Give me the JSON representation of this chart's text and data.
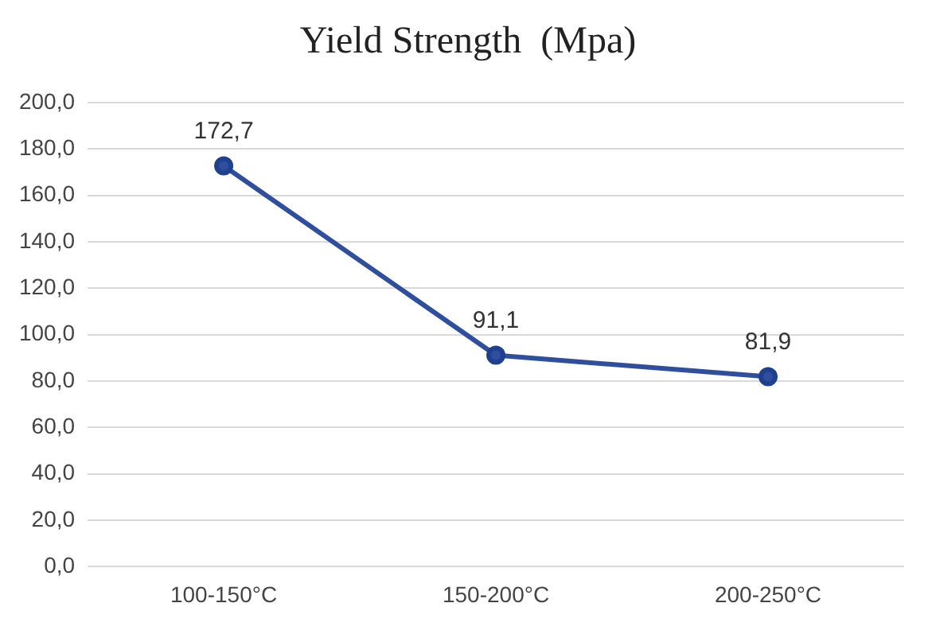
{
  "chart_data": {
    "type": "line",
    "title": "Yield Strength  (Mpa)",
    "categories": [
      "100-150°C",
      "150-200°C",
      "200-250°C"
    ],
    "series": [
      {
        "color": "#2f4f9e",
        "values": [
          172.7,
          91.1,
          81.9
        ],
        "value_labels": [
          "172,7",
          "91,1",
          "81,9"
        ]
      }
    ],
    "ylim": [
      0,
      200
    ],
    "yticks": [
      {
        "value": 0,
        "label": "0,0"
      },
      {
        "value": 20,
        "label": "20,0"
      },
      {
        "value": 40,
        "label": "40,0"
      },
      {
        "value": 60,
        "label": "60,0"
      },
      {
        "value": 80,
        "label": "80,0"
      },
      {
        "value": 100,
        "label": "100,0"
      },
      {
        "value": 120,
        "label": "120,0"
      },
      {
        "value": 140,
        "label": "140,0"
      },
      {
        "value": 160,
        "label": "160,0"
      },
      {
        "value": 180,
        "label": "180,0"
      },
      {
        "value": 200,
        "label": "200,0"
      }
    ],
    "grid": "y",
    "legend": false,
    "marker": "circle",
    "line_style": "solid"
  }
}
